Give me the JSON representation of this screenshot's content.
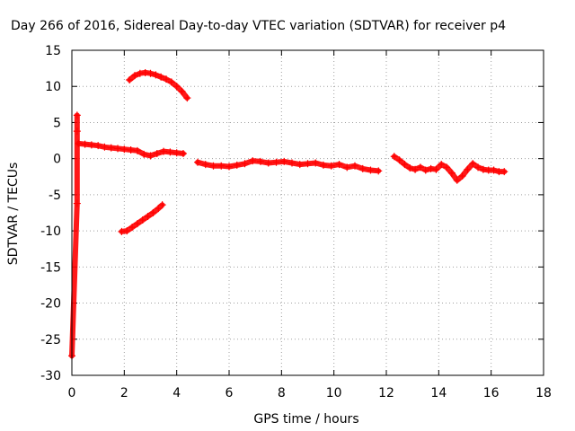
{
  "chart_data": {
    "type": "scatter",
    "title": "Day 266 of 2016, Sidereal Day-to-day VTEC variation (SDTVAR) for receiver p4",
    "xlabel": "GPS time / hours",
    "ylabel": "SDTVAR / TECUs",
    "xlim": [
      0,
      18
    ],
    "ylim": [
      -30,
      15
    ],
    "x_ticks": [
      "0",
      "2",
      "4",
      "6",
      "8",
      "10",
      "12",
      "14",
      "16",
      "18"
    ],
    "y_ticks": [
      "15",
      "10",
      "5",
      "0",
      "-5",
      "-10",
      "-15",
      "-20",
      "-25",
      "-30"
    ],
    "grid": true,
    "marker": "plus",
    "color": "#ff0000",
    "series": [
      {
        "x": [
          2.2,
          2.4,
          2.6,
          2.8,
          3.0,
          3.2,
          3.4,
          3.6,
          3.8,
          4.0,
          4.2,
          4.4
        ],
        "y": [
          10.9,
          11.5,
          11.8,
          11.9,
          11.8,
          11.6,
          11.3,
          11.0,
          10.6,
          10.0,
          9.3,
          8.4
        ]
      },
      {
        "x": [
          1.9,
          2.1,
          2.3,
          2.5,
          2.7,
          2.9,
          3.1,
          3.3,
          3.45
        ],
        "y": [
          -10.1,
          -10.0,
          -9.5,
          -9.0,
          -8.5,
          -8.0,
          -7.5,
          -6.9,
          -6.4
        ]
      },
      {
        "x": [
          0.25,
          0.5,
          0.75,
          1.0,
          1.25,
          1.5,
          1.75,
          2.0,
          2.25,
          2.5,
          2.75,
          3.0,
          3.25,
          3.5,
          3.75,
          4.0,
          4.25
        ],
        "y": [
          2.1,
          2.0,
          1.9,
          1.8,
          1.6,
          1.5,
          1.4,
          1.3,
          1.2,
          1.1,
          0.6,
          0.4,
          0.7,
          1.0,
          0.9,
          0.8,
          0.7
        ]
      },
      {
        "x": [
          4.8,
          5.1,
          5.4,
          5.7,
          6.0,
          6.3,
          6.6,
          6.9,
          7.2,
          7.5,
          7.8,
          8.1,
          8.4,
          8.7,
          9.0,
          9.3,
          9.6,
          9.9,
          10.2,
          10.5,
          10.8,
          11.1,
          11.4,
          11.7
        ],
        "y": [
          -0.5,
          -0.8,
          -1.0,
          -1.0,
          -1.1,
          -0.9,
          -0.7,
          -0.3,
          -0.4,
          -0.6,
          -0.5,
          -0.4,
          -0.6,
          -0.8,
          -0.7,
          -0.6,
          -0.9,
          -1.0,
          -0.8,
          -1.2,
          -1.0,
          -1.4,
          -1.6,
          -1.7
        ]
      },
      {
        "x": [
          0.2,
          0.2,
          0.2,
          0.0
        ],
        "y": [
          6.0,
          3.8,
          -6.2,
          -27.3
        ]
      },
      {
        "x": [
          12.3,
          12.5,
          12.7,
          12.9,
          13.1,
          13.3,
          13.5,
          13.7,
          13.9,
          14.1,
          14.3,
          14.5,
          14.7,
          14.9,
          15.1,
          15.3,
          15.5,
          15.7,
          15.9,
          16.1,
          16.3,
          16.5
        ],
        "y": [
          0.3,
          -0.2,
          -0.8,
          -1.3,
          -1.5,
          -1.2,
          -1.6,
          -1.4,
          -1.5,
          -0.8,
          -1.2,
          -2.0,
          -3.0,
          -2.4,
          -1.5,
          -0.7,
          -1.2,
          -1.5,
          -1.6,
          -1.6,
          -1.8,
          -1.8
        ]
      }
    ]
  }
}
